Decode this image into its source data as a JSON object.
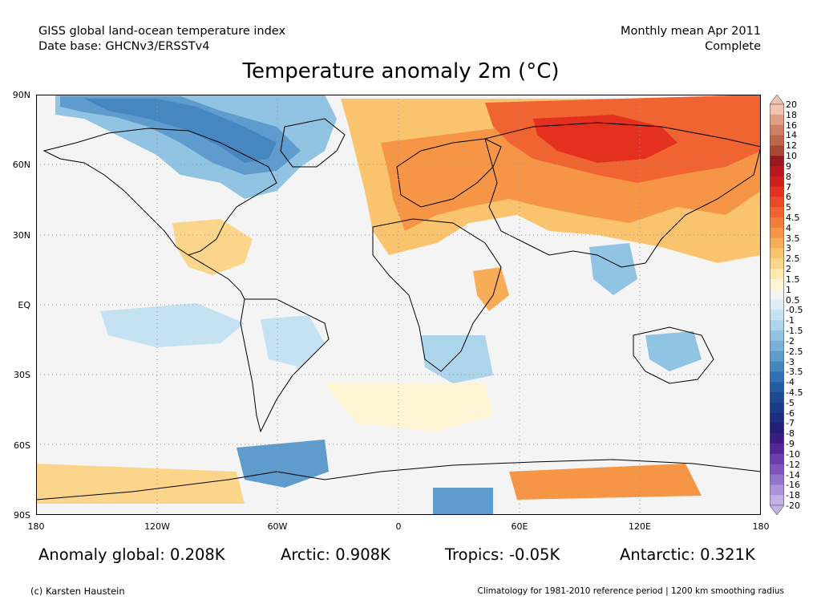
{
  "header": {
    "dataset": "GISS global land-ocean temperature index",
    "date_base": "Date base: GHCNv3/ERSSTv4",
    "period": "Monthly mean Apr 2011",
    "status": "Complete"
  },
  "title": "Temperature anomaly 2m (°C)",
  "map": {
    "lat_labels": [
      "90N",
      "60N",
      "30N",
      "EQ",
      "30S",
      "60S",
      "90S"
    ],
    "lon_labels": [
      "180",
      "120W",
      "60W",
      "0",
      "60E",
      "120E",
      "180"
    ],
    "grid": "dotted",
    "land_outline": "#000000"
  },
  "colorbar": {
    "labels": [
      "20",
      "18",
      "16",
      "14",
      "12",
      "10",
      "9",
      "8",
      "7",
      "6",
      "5",
      "4.5",
      "4",
      "3.5",
      "3",
      "2.5",
      "2",
      "1.5",
      "1",
      "0.5",
      "-0.5",
      "-1",
      "-1.5",
      "-2",
      "-2.5",
      "-3",
      "-3.5",
      "-4",
      "-4.5",
      "-5",
      "-6",
      "-7",
      "-8",
      "-9",
      "-10",
      "-12",
      "-14",
      "-16",
      "-18",
      "-20"
    ],
    "colors": [
      "#f2c4ad",
      "#e1a083",
      "#d08063",
      "#bf6548",
      "#a84a33",
      "#981a1c",
      "#b8181c",
      "#d0201c",
      "#e4301e",
      "#eb4a26",
      "#ef6430",
      "#f27c3a",
      "#f59545",
      "#f8ac57",
      "#fac46f",
      "#fbd68a",
      "#fde8b0",
      "#fef4d4",
      "#f4f4f4",
      "#dcedf7",
      "#c5e2f2",
      "#acd5ec",
      "#91c3e3",
      "#77b0d8",
      "#5e9ccd",
      "#4686c1",
      "#3370b2",
      "#255da4",
      "#1d4996",
      "#1a3a8b",
      "#1d2d80",
      "#221f78",
      "#3a1b84",
      "#53269a",
      "#6a3db0",
      "#7d55c0",
      "#9472cf",
      "#ac91dc",
      "#c4b0e8"
    ]
  },
  "stats": {
    "global": "Anomaly global: 0.208K",
    "arctic": "Arctic: 0.908K",
    "tropics": "Tropics: -0.05K",
    "antarctic": "Antarctic: 0.321K"
  },
  "footer": {
    "credit": "(c) Karsten Haustein",
    "note": "Climatology for 1981-2010 reference period | 1200 km smoothing radius"
  }
}
